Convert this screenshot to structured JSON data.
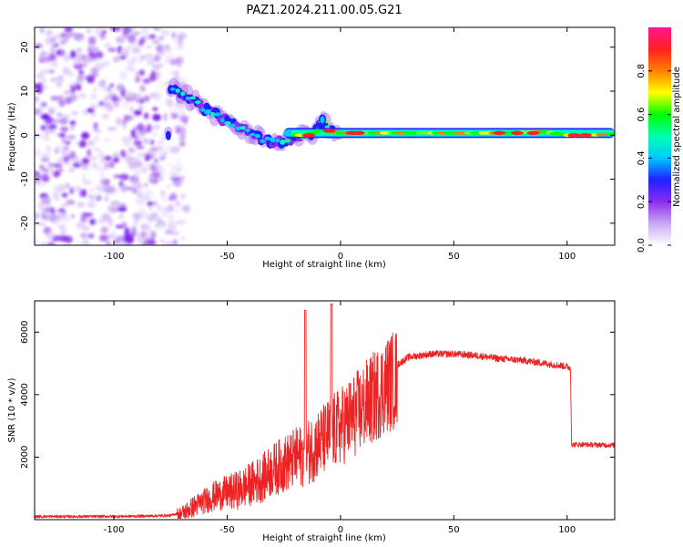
{
  "title": "PAZ1.2024.211.00.05.G21",
  "chart_data": [
    {
      "type": "heatmap",
      "xlabel": "Height of straight line (km)",
      "ylabel": "Frequency (Hz)",
      "xlim": [
        -135,
        121
      ],
      "ylim": [
        -25,
        24.5
      ],
      "xticks": [
        -100,
        -50,
        0,
        50,
        100
      ],
      "yticks": [
        -20,
        -10,
        0,
        10,
        20
      ],
      "colorbar": {
        "label": "Normalized spectral amplitude",
        "range": [
          0,
          1
        ],
        "ticks": [
          0.0,
          0.2,
          0.4,
          0.6,
          0.8
        ],
        "colormap": [
          "#ffffff",
          "#c8a8f0",
          "#8c2cf0",
          "#2020ff",
          "#00c8ff",
          "#00ffb0",
          "#00ff00",
          "#ffff00",
          "#ff8000",
          "#ff2020",
          "#ff1493"
        ]
      },
      "ridge": {
        "description_points_x": [
          -75,
          -70,
          -65,
          -60,
          -55,
          -50,
          -45,
          -40,
          -35,
          -30,
          -25,
          -20,
          -15,
          -10,
          -8,
          -5,
          0,
          10,
          30,
          50,
          70,
          90,
          100,
          110,
          121
        ],
        "description_points_y": [
          10.5,
          9.5,
          8,
          6,
          4.5,
          3,
          1.5,
          0.5,
          -1,
          -1.5,
          -1.5,
          0,
          0,
          1,
          3.5,
          1,
          0.5,
          0.5,
          0.5,
          0.5,
          0.5,
          0.8,
          0,
          0,
          0.3
        ]
      },
      "noise_region_x": [
        -135,
        -72
      ]
    },
    {
      "type": "line",
      "xlabel": "Height of straight line (km)",
      "ylabel": "SNR (10 * v/v)",
      "xlim": [
        -135,
        121
      ],
      "ylim": [
        0,
        7000
      ],
      "xticks": [
        -100,
        -50,
        0,
        50,
        100
      ],
      "yticks": [
        2000,
        4000,
        6000
      ],
      "color": "#ee2222",
      "envelope_x": [
        -135,
        -110,
        -90,
        -75,
        -70,
        -65,
        -60,
        -55,
        -50,
        -45,
        -40,
        -35,
        -30,
        -25,
        -20,
        -15,
        -10,
        -5,
        0,
        5,
        10,
        15,
        20,
        25,
        30,
        40,
        50,
        60,
        70,
        80,
        90,
        100,
        101.5,
        102,
        110,
        121
      ],
      "envelope_y": [
        100,
        100,
        110,
        130,
        250,
        500,
        700,
        900,
        1000,
        1100,
        1300,
        1500,
        1800,
        2000,
        2200,
        2400,
        2700,
        3000,
        3300,
        3600,
        3950,
        4300,
        4700,
        4950,
        5200,
        5300,
        5300,
        5250,
        5150,
        5100,
        5000,
        4900,
        4850,
        2400,
        2400,
        2380
      ],
      "spikes": [
        {
          "x": -15.5,
          "y": 6700
        },
        {
          "x": -4,
          "y": 6900
        }
      ]
    }
  ]
}
